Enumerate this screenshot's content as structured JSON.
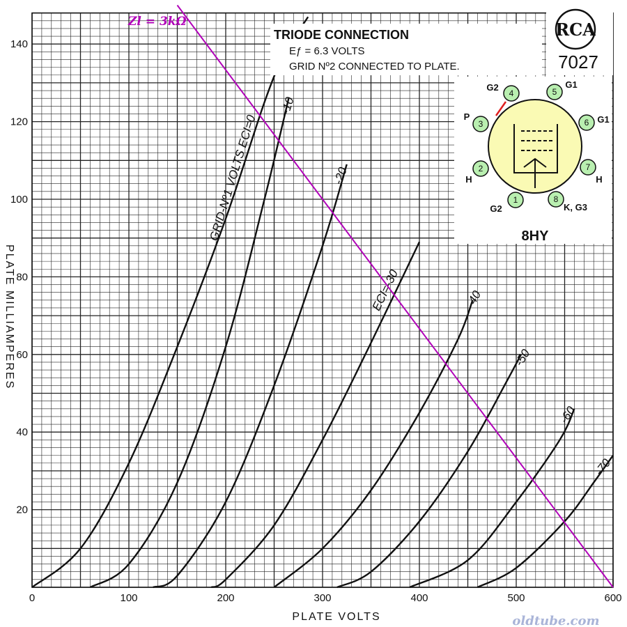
{
  "chart_data": {
    "type": "line",
    "xlabel": "PLATE VOLTS",
    "ylabel": "PLATE MILLIAMPERES",
    "xlim": [
      0,
      600
    ],
    "ylim": [
      0,
      148
    ],
    "x_ticks": [
      "0",
      "100",
      "200",
      "300",
      "400",
      "500",
      "600"
    ],
    "y_ticks": [
      "20",
      "40",
      "60",
      "80",
      "100",
      "120",
      "140"
    ],
    "grid": true,
    "series": [
      {
        "name": "GRID-Nº1 VOLTS ECI=0",
        "grid_volts": 0,
        "x": [
          0,
          50,
          100,
          150,
          200,
          240,
          260,
          285
        ],
        "y": [
          0,
          10,
          32,
          62,
          95,
          125,
          137,
          147
        ]
      },
      {
        "name": "-10",
        "grid_volts": -10,
        "x": [
          60,
          100,
          150,
          200,
          240,
          265
        ],
        "y": [
          0,
          6,
          27,
          62,
          100,
          126
        ]
      },
      {
        "name": "-20",
        "grid_volts": -20,
        "x": [
          125,
          150,
          200,
          250,
          300,
          325
        ],
        "y": [
          0,
          3,
          22,
          52,
          88,
          109
        ]
      },
      {
        "name": "ECI=-30",
        "grid_volts": -30,
        "x": [
          185,
          200,
          250,
          300,
          350,
          400
        ],
        "y": [
          0,
          2,
          16,
          38,
          63,
          89
        ]
      },
      {
        "name": "-40",
        "grid_volts": -40,
        "x": [
          250,
          300,
          350,
          400,
          440,
          455
        ],
        "y": [
          0,
          10,
          25,
          45,
          64,
          74
        ]
      },
      {
        "name": "-50",
        "grid_volts": -50,
        "x": [
          315,
          350,
          400,
          450,
          490,
          505
        ],
        "y": [
          0,
          4,
          17,
          35,
          53,
          60
        ]
      },
      {
        "name": "-60",
        "grid_volts": -60,
        "x": [
          390,
          450,
          500,
          545,
          560
        ],
        "y": [
          0,
          7,
          22,
          38,
          46
        ]
      },
      {
        "name": "-70",
        "grid_volts": -70,
        "x": [
          460,
          500,
          550,
          580,
          600
        ],
        "y": [
          0,
          5,
          17,
          27,
          34
        ]
      }
    ],
    "load_line": {
      "name": "Zl = 3kΩ",
      "x": [
        150,
        600
      ],
      "y": [
        150,
        0
      ],
      "color": "#b000b8"
    }
  },
  "info": {
    "line1": "TRIODE CONNECTION",
    "line2": "Eƒ = 6.3 VOLTS",
    "line3": "GRID  Nº2  CONNECTED  TO  PLATE.",
    "logo": "RCA",
    "tube": "7027",
    "base_code": "8HY"
  },
  "pinout": {
    "pins": [
      {
        "n": "1",
        "label": "G2"
      },
      {
        "n": "2",
        "label": "H"
      },
      {
        "n": "3",
        "label": "P"
      },
      {
        "n": "4",
        "label": "G2"
      },
      {
        "n": "5",
        "label": "G1"
      },
      {
        "n": "6",
        "label": "G1"
      },
      {
        "n": "7",
        "label": "H"
      },
      {
        "n": "8",
        "label": "K, G3"
      }
    ],
    "pin_color": "#b9efb0",
    "envelope_color": "#fafab4",
    "strap_color": "#e02020"
  },
  "watermark": "oldtube.com"
}
